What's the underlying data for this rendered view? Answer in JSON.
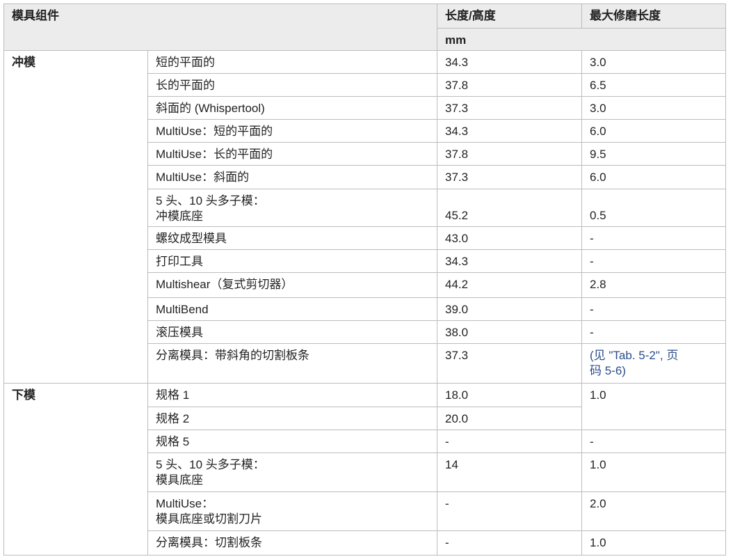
{
  "header": {
    "component": "模具组件",
    "length": "长度/高度",
    "max_grind": "最大修磨长度",
    "unit": "mm"
  },
  "groups": [
    {
      "category": "冲模",
      "rows": [
        {
          "component": [
            "短的平面的"
          ],
          "length": "34.3",
          "max": "3.0"
        },
        {
          "component": [
            "长的平面的"
          ],
          "length": "37.8",
          "max": "6.5"
        },
        {
          "component": [
            "斜面的 (Whispertool)"
          ],
          "length": "37.3",
          "max": "3.0"
        },
        {
          "component": [
            "MultiUse：短的平面的"
          ],
          "length": "34.3",
          "max": "6.0"
        },
        {
          "component": [
            "MultiUse：长的平面的"
          ],
          "length": "37.8",
          "max": "9.5"
        },
        {
          "component": [
            "MultiUse：斜面的"
          ],
          "length": "37.3",
          "max": "6.0"
        },
        {
          "component": [
            "5 头、10 头多子模：",
            "冲模底座"
          ],
          "length": "45.2",
          "max": "0.5",
          "valign": "bottom"
        },
        {
          "component": [
            "螺纹成型模具"
          ],
          "length": "43.0",
          "max": "-"
        },
        {
          "component": [
            "打印工具"
          ],
          "length": "34.3",
          "max": "-"
        },
        {
          "component": [
            "Multishear（复式剪切器）"
          ],
          "length": "44.2",
          "max": "2.8"
        },
        {
          "component": [
            "MultiBend"
          ],
          "length": "39.0",
          "max": "-"
        },
        {
          "component": [
            "滚压模具"
          ],
          "length": "38.0",
          "max": "-"
        },
        {
          "component": [
            "分离模具：带斜角的切割板条"
          ],
          "length": "37.3",
          "max": [
            "(见 \"Tab. 5-2\", 页",
            "码 5-6)"
          ],
          "max_link": true
        }
      ]
    },
    {
      "category": "下模",
      "rows": [
        {
          "component": [
            "规格 1"
          ],
          "length": "18.0",
          "max": "1.0",
          "max_rowspan": 2
        },
        {
          "component": [
            "规格 2"
          ],
          "length": "20.0"
        },
        {
          "component": [
            "规格 5"
          ],
          "length": "-",
          "max": "-"
        },
        {
          "component": [
            "5 头、10 头多子模：",
            "模具底座"
          ],
          "length": "14",
          "max": "1.0"
        },
        {
          "component": [
            "MultiUse：",
            "模具底座或切割刀片"
          ],
          "length": "-",
          "max": "2.0"
        },
        {
          "component": [
            "分离模具：切割板条"
          ],
          "length": "-",
          "max": "1.0"
        }
      ]
    }
  ]
}
